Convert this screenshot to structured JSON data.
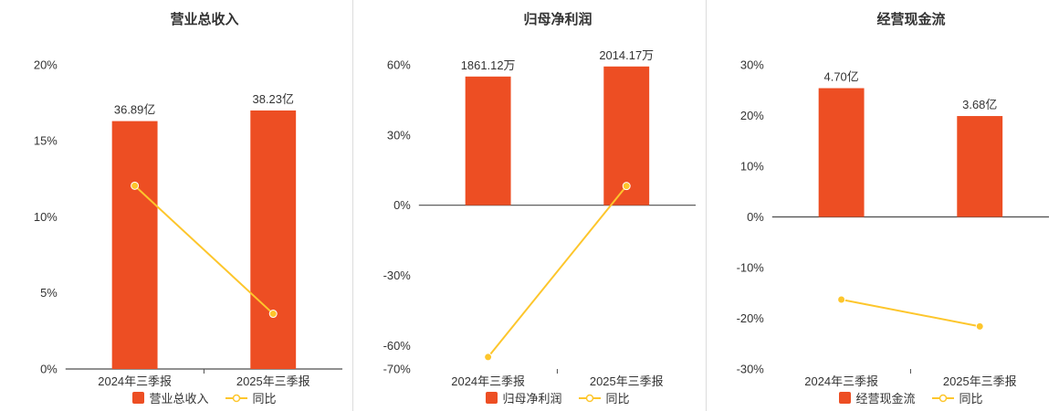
{
  "page": {
    "background": "#ffffff"
  },
  "colors": {
    "bar": "#ed4e23",
    "line": "#fdc62c",
    "axis": "#4d4d4d",
    "text": "#333333",
    "divider": "#dcdcdc"
  },
  "chart_data": [
    {
      "type": "bar+line",
      "title": "营业总收入",
      "categories": [
        "2024年三季报",
        "2025年三季报"
      ],
      "bar_series": {
        "name": "营业总收入",
        "value_labels": [
          "36.89亿",
          "38.23亿"
        ],
        "display_pct": [
          16.3,
          17.0
        ]
      },
      "line_series": {
        "name": "同比",
        "values_pct": [
          12.05,
          3.63
        ]
      },
      "y_ticks": [
        20,
        15,
        10,
        5,
        0
      ],
      "ylim": [
        0,
        20
      ],
      "grid": false,
      "legend_position": "bottom"
    },
    {
      "type": "bar+line",
      "title": "归母净利润",
      "categories": [
        "2024年三季报",
        "2025年三季报"
      ],
      "bar_series": {
        "name": "归母净利润",
        "value_labels": [
          "1861.12万",
          "2014.17万"
        ],
        "display_pct": [
          55.0,
          59.3
        ]
      },
      "line_series": {
        "name": "同比",
        "values_pct": [
          -64.9,
          8.22
        ]
      },
      "y_ticks": [
        60,
        30,
        0,
        -30,
        -60,
        -70
      ],
      "ylim": [
        -70,
        60
      ],
      "grid": false,
      "legend_position": "bottom"
    },
    {
      "type": "bar+line",
      "title": "经营现金流",
      "categories": [
        "2024年三季报",
        "2025年三季报"
      ],
      "bar_series": {
        "name": "经营现金流",
        "value_labels": [
          "4.70亿",
          "3.68亿"
        ],
        "display_pct": [
          25.4,
          19.9
        ]
      },
      "line_series": {
        "name": "同比",
        "values_pct": [
          -16.3,
          -21.6
        ]
      },
      "y_ticks": [
        30,
        20,
        10,
        0,
        -10,
        -20,
        -30
      ],
      "ylim": [
        -30,
        30
      ],
      "grid": false,
      "legend_position": "bottom"
    }
  ]
}
